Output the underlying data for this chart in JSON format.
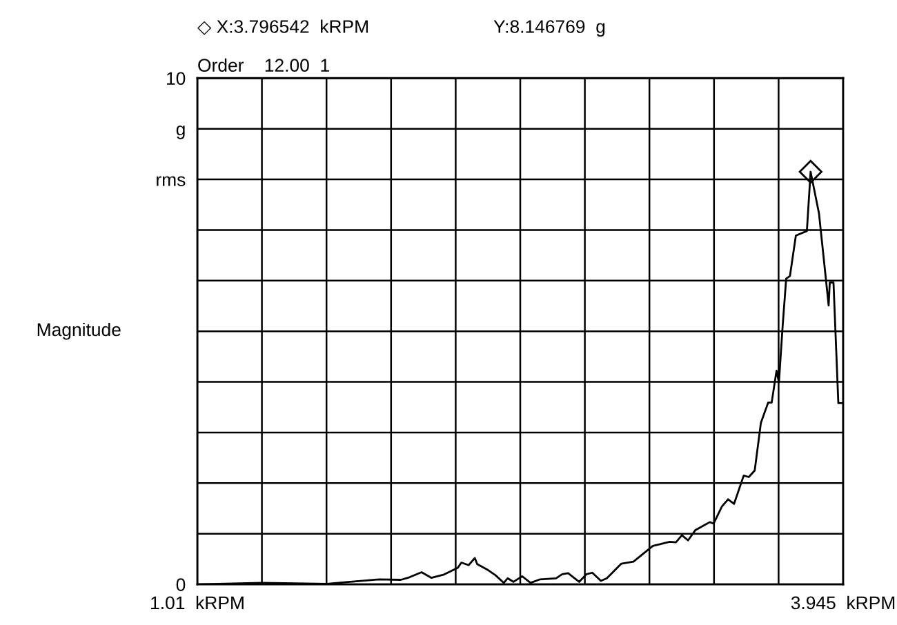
{
  "chart_data": {
    "type": "line",
    "ylabel": "Magnitude",
    "annotations": [
      "◇ X:3.796542  kRPM",
      "Y:8.146769  g",
      "Order    12.00  1"
    ],
    "xlim": [
      1.01,
      3.945
    ],
    "ylim": [
      0,
      10
    ],
    "xticks": [
      {
        "value": 1.01,
        "label": "1.01  kRPM"
      },
      {
        "value": 1.3035,
        "label": null
      },
      {
        "value": 1.597,
        "label": null
      },
      {
        "value": 1.8905,
        "label": null
      },
      {
        "value": 2.184,
        "label": null
      },
      {
        "value": 2.4775,
        "label": null
      },
      {
        "value": 2.771,
        "label": null
      },
      {
        "value": 3.0645,
        "label": null
      },
      {
        "value": 3.358,
        "label": null
      },
      {
        "value": 3.6515,
        "label": null
      },
      {
        "value": 3.945,
        "label": "3.945  kRPM"
      }
    ],
    "yticks": [
      0,
      {
        "value": 1,
        "label": null
      },
      {
        "value": 2,
        "label": null
      },
      {
        "value": 3,
        "label": null
      },
      {
        "value": 4,
        "label": null
      },
      {
        "value": 5,
        "label": null
      },
      {
        "value": 6,
        "label": null
      },
      {
        "value": 7,
        "label": null
      },
      {
        "value": 8,
        "label": "rms"
      },
      {
        "value": 9,
        "label": "g"
      },
      10
    ],
    "grid": true,
    "series": [
      {
        "color": "#000000",
        "marker": "none",
        "x": [
          1.01,
          1.302,
          1.599,
          1.704,
          1.836,
          1.935,
          1.974,
          2.029,
          2.073,
          2.128,
          2.194,
          2.21,
          2.243,
          2.271,
          2.282,
          2.332,
          2.365,
          2.403,
          2.42,
          2.447,
          2.486,
          2.524,
          2.568,
          2.64,
          2.668,
          2.695,
          2.745,
          2.778,
          2.805,
          2.844,
          2.871,
          2.937,
          2.992,
          3.08,
          3.157,
          3.185,
          3.212,
          3.24,
          3.273,
          3.339,
          3.356,
          3.394,
          3.422,
          3.449,
          3.493,
          3.516,
          3.543,
          3.571,
          3.604,
          3.62,
          3.642,
          3.653,
          3.67,
          3.686,
          3.703,
          3.73,
          3.78,
          3.797,
          3.835,
          3.879,
          3.884,
          3.901,
          3.923,
          3.945
        ],
        "values": [
          0,
          0.03,
          0.01,
          0.05,
          0.1,
          0.09,
          0.14,
          0.24,
          0.13,
          0.19,
          0.33,
          0.43,
          0.38,
          0.52,
          0.4,
          0.28,
          0.18,
          0.03,
          0.12,
          0.05,
          0.16,
          0.03,
          0.1,
          0.12,
          0.2,
          0.22,
          0.05,
          0.2,
          0.23,
          0.07,
          0.12,
          0.41,
          0.45,
          0.76,
          0.84,
          0.83,
          0.97,
          0.87,
          1.07,
          1.23,
          1.2,
          1.54,
          1.68,
          1.59,
          2.15,
          2.12,
          2.25,
          3.19,
          3.59,
          3.59,
          4.22,
          3.99,
          5.11,
          6.04,
          6.09,
          6.89,
          6.98,
          8.15,
          7.33,
          5.51,
          5.96,
          5.96,
          3.58,
          3.58
        ]
      },
      {
        "type": "scatter",
        "color": "#000000",
        "marker": "diamond",
        "x": [
          3.797
        ],
        "values": [
          8.15
        ]
      }
    ]
  }
}
